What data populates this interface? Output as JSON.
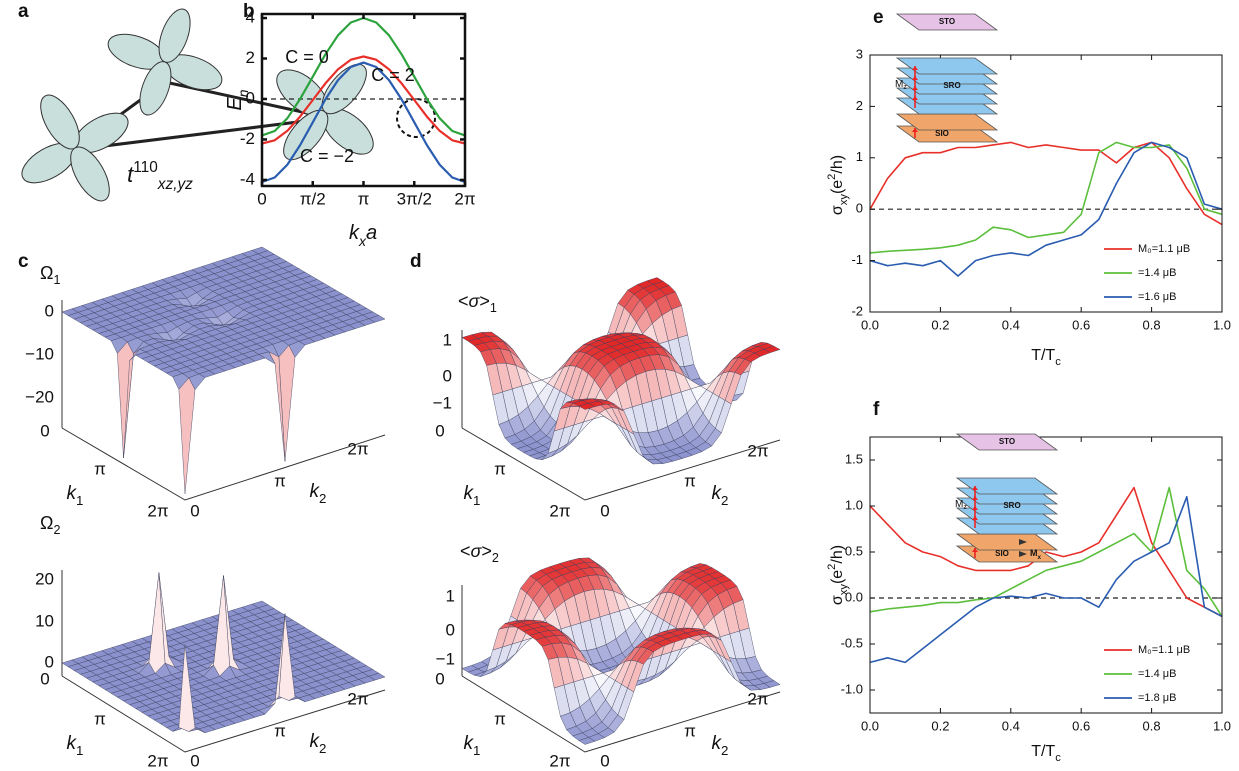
{
  "panel_labels": [
    "a",
    "b",
    "c",
    "d",
    "e",
    "f"
  ],
  "orbital_panel": {
    "hopping": [
      {
        "text": "t",
        "style": "italic"
      },
      {
        "text": "110",
        "pos": "sup"
      },
      {
        "text": "xz,yz",
        "pos": "sub",
        "style": "italic"
      }
    ]
  },
  "surface_panels": [
    {
      "z_label": [
        {
          "text": "Ω"
        },
        {
          "text": "1",
          "pos": "sub"
        }
      ],
      "z_ticks": [
        "0",
        "−10",
        "−20"
      ],
      "k1_ticks": [
        "0",
        "π",
        "2π"
      ],
      "k2_ticks": [
        "0",
        "π",
        "2π"
      ],
      "k1_label": [
        {
          "text": "k",
          "style": "italic"
        },
        {
          "text": "1",
          "pos": "sub"
        }
      ],
      "k2_label": [
        {
          "text": "k",
          "style": "italic"
        },
        {
          "text": "2",
          "pos": "sub"
        }
      ]
    },
    {
      "z_label": [
        {
          "text": "Ω"
        },
        {
          "text": "2",
          "pos": "sub"
        }
      ],
      "z_ticks": [
        "20",
        "10",
        "0"
      ],
      "k1_ticks": [
        "0",
        "π",
        "2π"
      ],
      "k2_ticks": [
        "0",
        "π",
        "2π"
      ],
      "k1_label": [
        {
          "text": "k",
          "style": "italic"
        },
        {
          "text": "1",
          "pos": "sub"
        }
      ],
      "k2_label": [
        {
          "text": "k",
          "style": "italic"
        },
        {
          "text": "2",
          "pos": "sub"
        }
      ]
    },
    {
      "z_label": [
        {
          "text": "<"
        },
        {
          "text": "σ",
          "style": "italic"
        },
        {
          "text": ">"
        },
        {
          "text": "1",
          "pos": "sub"
        }
      ],
      "z_ticks": [
        "1",
        "0",
        "−1"
      ],
      "k1_ticks": [
        "0",
        "π",
        "2π"
      ],
      "k2_ticks": [
        "0",
        "π",
        "2π"
      ],
      "k1_label": [
        {
          "text": "k",
          "style": "italic"
        },
        {
          "text": "1",
          "pos": "sub"
        }
      ],
      "k2_label": [
        {
          "text": "k",
          "style": "italic"
        },
        {
          "text": "2",
          "pos": "sub"
        }
      ]
    },
    {
      "z_label": [
        {
          "text": "<"
        },
        {
          "text": "σ",
          "style": "italic"
        },
        {
          "text": ">"
        },
        {
          "text": "2",
          "pos": "sub"
        }
      ],
      "z_ticks": [
        "1",
        "0",
        "−1"
      ],
      "k1_ticks": [
        "0",
        "π",
        "2π"
      ],
      "k2_ticks": [
        "0",
        "π",
        "2π"
      ],
      "k1_label": [
        {
          "text": "k",
          "style": "italic"
        },
        {
          "text": "1",
          "pos": "sub"
        }
      ],
      "k2_label": [
        {
          "text": "k",
          "style": "italic"
        },
        {
          "text": "2",
          "pos": "sub"
        }
      ]
    }
  ],
  "insets": [
    {
      "layers": [
        "STO",
        "SRO",
        "SIO"
      ],
      "moment": [
        {
          "text": "M"
        },
        {
          "text": "z",
          "pos": "sub"
        }
      ]
    },
    {
      "layers": [
        "STO",
        "SRO",
        "SIO"
      ],
      "moment": [
        {
          "text": "M"
        },
        {
          "text": "z",
          "pos": "sub"
        }
      ],
      "sio_moment": [
        {
          "text": "M"
        },
        {
          "text": "x",
          "pos": "sub"
        }
      ]
    }
  ],
  "chart_data": [
    {
      "type": "line",
      "x": [
        0,
        0.3927,
        0.7854,
        1.1781,
        1.5708,
        1.9635,
        2.3562,
        2.7489,
        3.1416,
        3.5343,
        3.927,
        4.3197,
        4.7124,
        5.1051,
        5.4978,
        5.8905,
        6.2832
      ],
      "xlim": [
        0,
        6.2832
      ],
      "xticks": [
        0,
        {
          "value": 1.5708,
          "label": "π/2"
        },
        {
          "value": 3.1416,
          "label": "π"
        },
        {
          "value": 4.7124,
          "label": "3π/2"
        },
        {
          "value": 6.2832,
          "label": "2π"
        }
      ],
      "ylim": [
        -4.3,
        4.2
      ],
      "yticks": [
        -4,
        -2,
        0,
        2,
        4
      ],
      "reference_line": 0,
      "x_label": [
        {
          "text": "k",
          "style": "italic"
        },
        {
          "text": "x",
          "pos": "sub",
          "style": "italic"
        },
        {
          "text": "a",
          "style": "italic"
        }
      ],
      "y_label": [
        {
          "text": "E",
          "style": "italic"
        },
        {
          "text": "n",
          "pos": "sub",
          "style": "italic"
        }
      ],
      "series": [
        {
          "name": "C = 0",
          "color": "#2ca33c",
          "values": [
            -1.8,
            -1.58,
            -0.95,
            0.0,
            1.1,
            2.21,
            3.15,
            3.78,
            4.0,
            3.78,
            3.15,
            2.21,
            1.1,
            0.0,
            -0.95,
            -1.58,
            -1.8
          ]
        },
        {
          "name": "C = 2",
          "color": "#e8302a",
          "values": [
            -2.2,
            -2.04,
            -1.57,
            -0.87,
            -0.05,
            0.77,
            1.47,
            1.94,
            2.1,
            1.94,
            1.47,
            0.77,
            -0.05,
            -0.87,
            -1.57,
            -2.04,
            -2.2
          ]
        },
        {
          "name": "C = −2",
          "color": "#2a5cb0",
          "values": [
            -4.1,
            -3.88,
            -3.24,
            -2.28,
            -1.15,
            -0.02,
            0.94,
            1.58,
            1.8,
            1.58,
            0.94,
            -0.02,
            -1.15,
            -2.28,
            -3.24,
            -3.88,
            -4.1
          ]
        }
      ]
    },
    {
      "type": "line",
      "x": [
        0,
        0.05,
        0.1,
        0.15,
        0.2,
        0.25,
        0.3,
        0.35,
        0.4,
        0.45,
        0.5,
        0.55,
        0.6,
        0.65,
        0.7,
        0.75,
        0.8,
        0.85,
        0.9,
        0.95,
        1
      ],
      "xlim": [
        0,
        1
      ],
      "xticks": [
        {
          "value": 0,
          "label": "0.0"
        },
        0.2,
        0.4,
        0.6,
        0.8,
        {
          "value": 1,
          "label": "1.0"
        }
      ],
      "ylim": [
        -2,
        3
      ],
      "yticks": [
        -2,
        -1,
        0,
        1,
        2,
        3
      ],
      "reference_line": 0,
      "legend": "lower right",
      "x_label": [
        {
          "text": "T/T"
        },
        {
          "text": "c",
          "pos": "sub"
        }
      ],
      "y_label": [
        {
          "text": "σ"
        },
        {
          "text": "xy",
          "pos": "sub"
        },
        {
          "text": "(e"
        },
        {
          "text": "2",
          "pos": "sup"
        },
        {
          "text": "/h)"
        }
      ],
      "series": [
        {
          "name": "M₀=1.1 μB",
          "color": "#e8302a",
          "values": [
            0,
            0.6,
            1.0,
            1.1,
            1.1,
            1.2,
            1.2,
            1.25,
            1.3,
            1.2,
            1.25,
            1.2,
            1.15,
            1.15,
            0.9,
            1.2,
            1.3,
            1.0,
            0.4,
            -0.1,
            -0.3
          ]
        },
        {
          "name": "=1.4 μB",
          "color": "#5cbf3c",
          "values": [
            -0.85,
            -0.82,
            -0.8,
            -0.78,
            -0.75,
            -0.7,
            -0.6,
            -0.35,
            -0.4,
            -0.55,
            -0.5,
            -0.45,
            -0.1,
            1.1,
            1.3,
            1.2,
            1.2,
            1.25,
            0.8,
            0.0,
            -0.1
          ]
        },
        {
          "name": "=1.6 μB",
          "color": "#2a5cb0",
          "values": [
            -1.0,
            -1.1,
            -1.05,
            -1.1,
            -1.0,
            -1.3,
            -1.0,
            -0.9,
            -0.85,
            -0.9,
            -0.7,
            -0.6,
            -0.5,
            -0.2,
            0.5,
            1.1,
            1.3,
            1.2,
            1.0,
            0.1,
            0.0
          ]
        }
      ]
    },
    {
      "type": "line",
      "x": [
        0,
        0.05,
        0.1,
        0.15,
        0.2,
        0.25,
        0.3,
        0.35,
        0.4,
        0.45,
        0.5,
        0.55,
        0.6,
        0.65,
        0.7,
        0.75,
        0.8,
        0.85,
        0.9,
        0.95,
        1
      ],
      "xlim": [
        0,
        1
      ],
      "xticks": [
        {
          "value": 0,
          "label": "0.0"
        },
        0.2,
        0.4,
        0.6,
        0.8,
        {
          "value": 1,
          "label": "1.0"
        }
      ],
      "ylim": [
        -1.25,
        1.75
      ],
      "yticks": [
        {
          "value": -1,
          "label": "-1.0"
        },
        -0.5,
        {
          "value": 0,
          "label": "0.0"
        },
        0.5,
        {
          "value": 1,
          "label": "1.0"
        },
        1.5
      ],
      "reference_line": 0,
      "legend": "lower right",
      "x_label": [
        {
          "text": "T/T"
        },
        {
          "text": "c",
          "pos": "sub"
        }
      ],
      "y_label": [
        {
          "text": "σ"
        },
        {
          "text": "xy",
          "pos": "sub"
        },
        {
          "text": "(e"
        },
        {
          "text": "2",
          "pos": "sup"
        },
        {
          "text": "/h)"
        }
      ],
      "series": [
        {
          "name": "M₀=1.1 μB",
          "color": "#e8302a",
          "values": [
            1.0,
            0.8,
            0.6,
            0.5,
            0.45,
            0.35,
            0.3,
            0.3,
            0.3,
            0.35,
            0.5,
            0.45,
            0.5,
            0.6,
            0.9,
            1.2,
            0.6,
            0.3,
            0.0,
            -0.1,
            -0.2
          ]
        },
        {
          "name": "=1.4 μB",
          "color": "#5cbf3c",
          "values": [
            -0.15,
            -0.12,
            -0.1,
            -0.08,
            -0.05,
            -0.05,
            -0.02,
            0.0,
            0.1,
            0.2,
            0.3,
            0.35,
            0.4,
            0.5,
            0.6,
            0.7,
            0.5,
            1.2,
            0.3,
            0.1,
            -0.2
          ]
        },
        {
          "name": "=1.8 μB",
          "color": "#2a5cb0",
          "values": [
            -0.7,
            -0.65,
            -0.7,
            -0.55,
            -0.4,
            -0.25,
            -0.1,
            0.0,
            0.02,
            0.0,
            0.05,
            0.0,
            0.0,
            -0.1,
            0.2,
            0.4,
            0.5,
            0.6,
            1.1,
            -0.1,
            -0.2
          ]
        }
      ]
    }
  ]
}
